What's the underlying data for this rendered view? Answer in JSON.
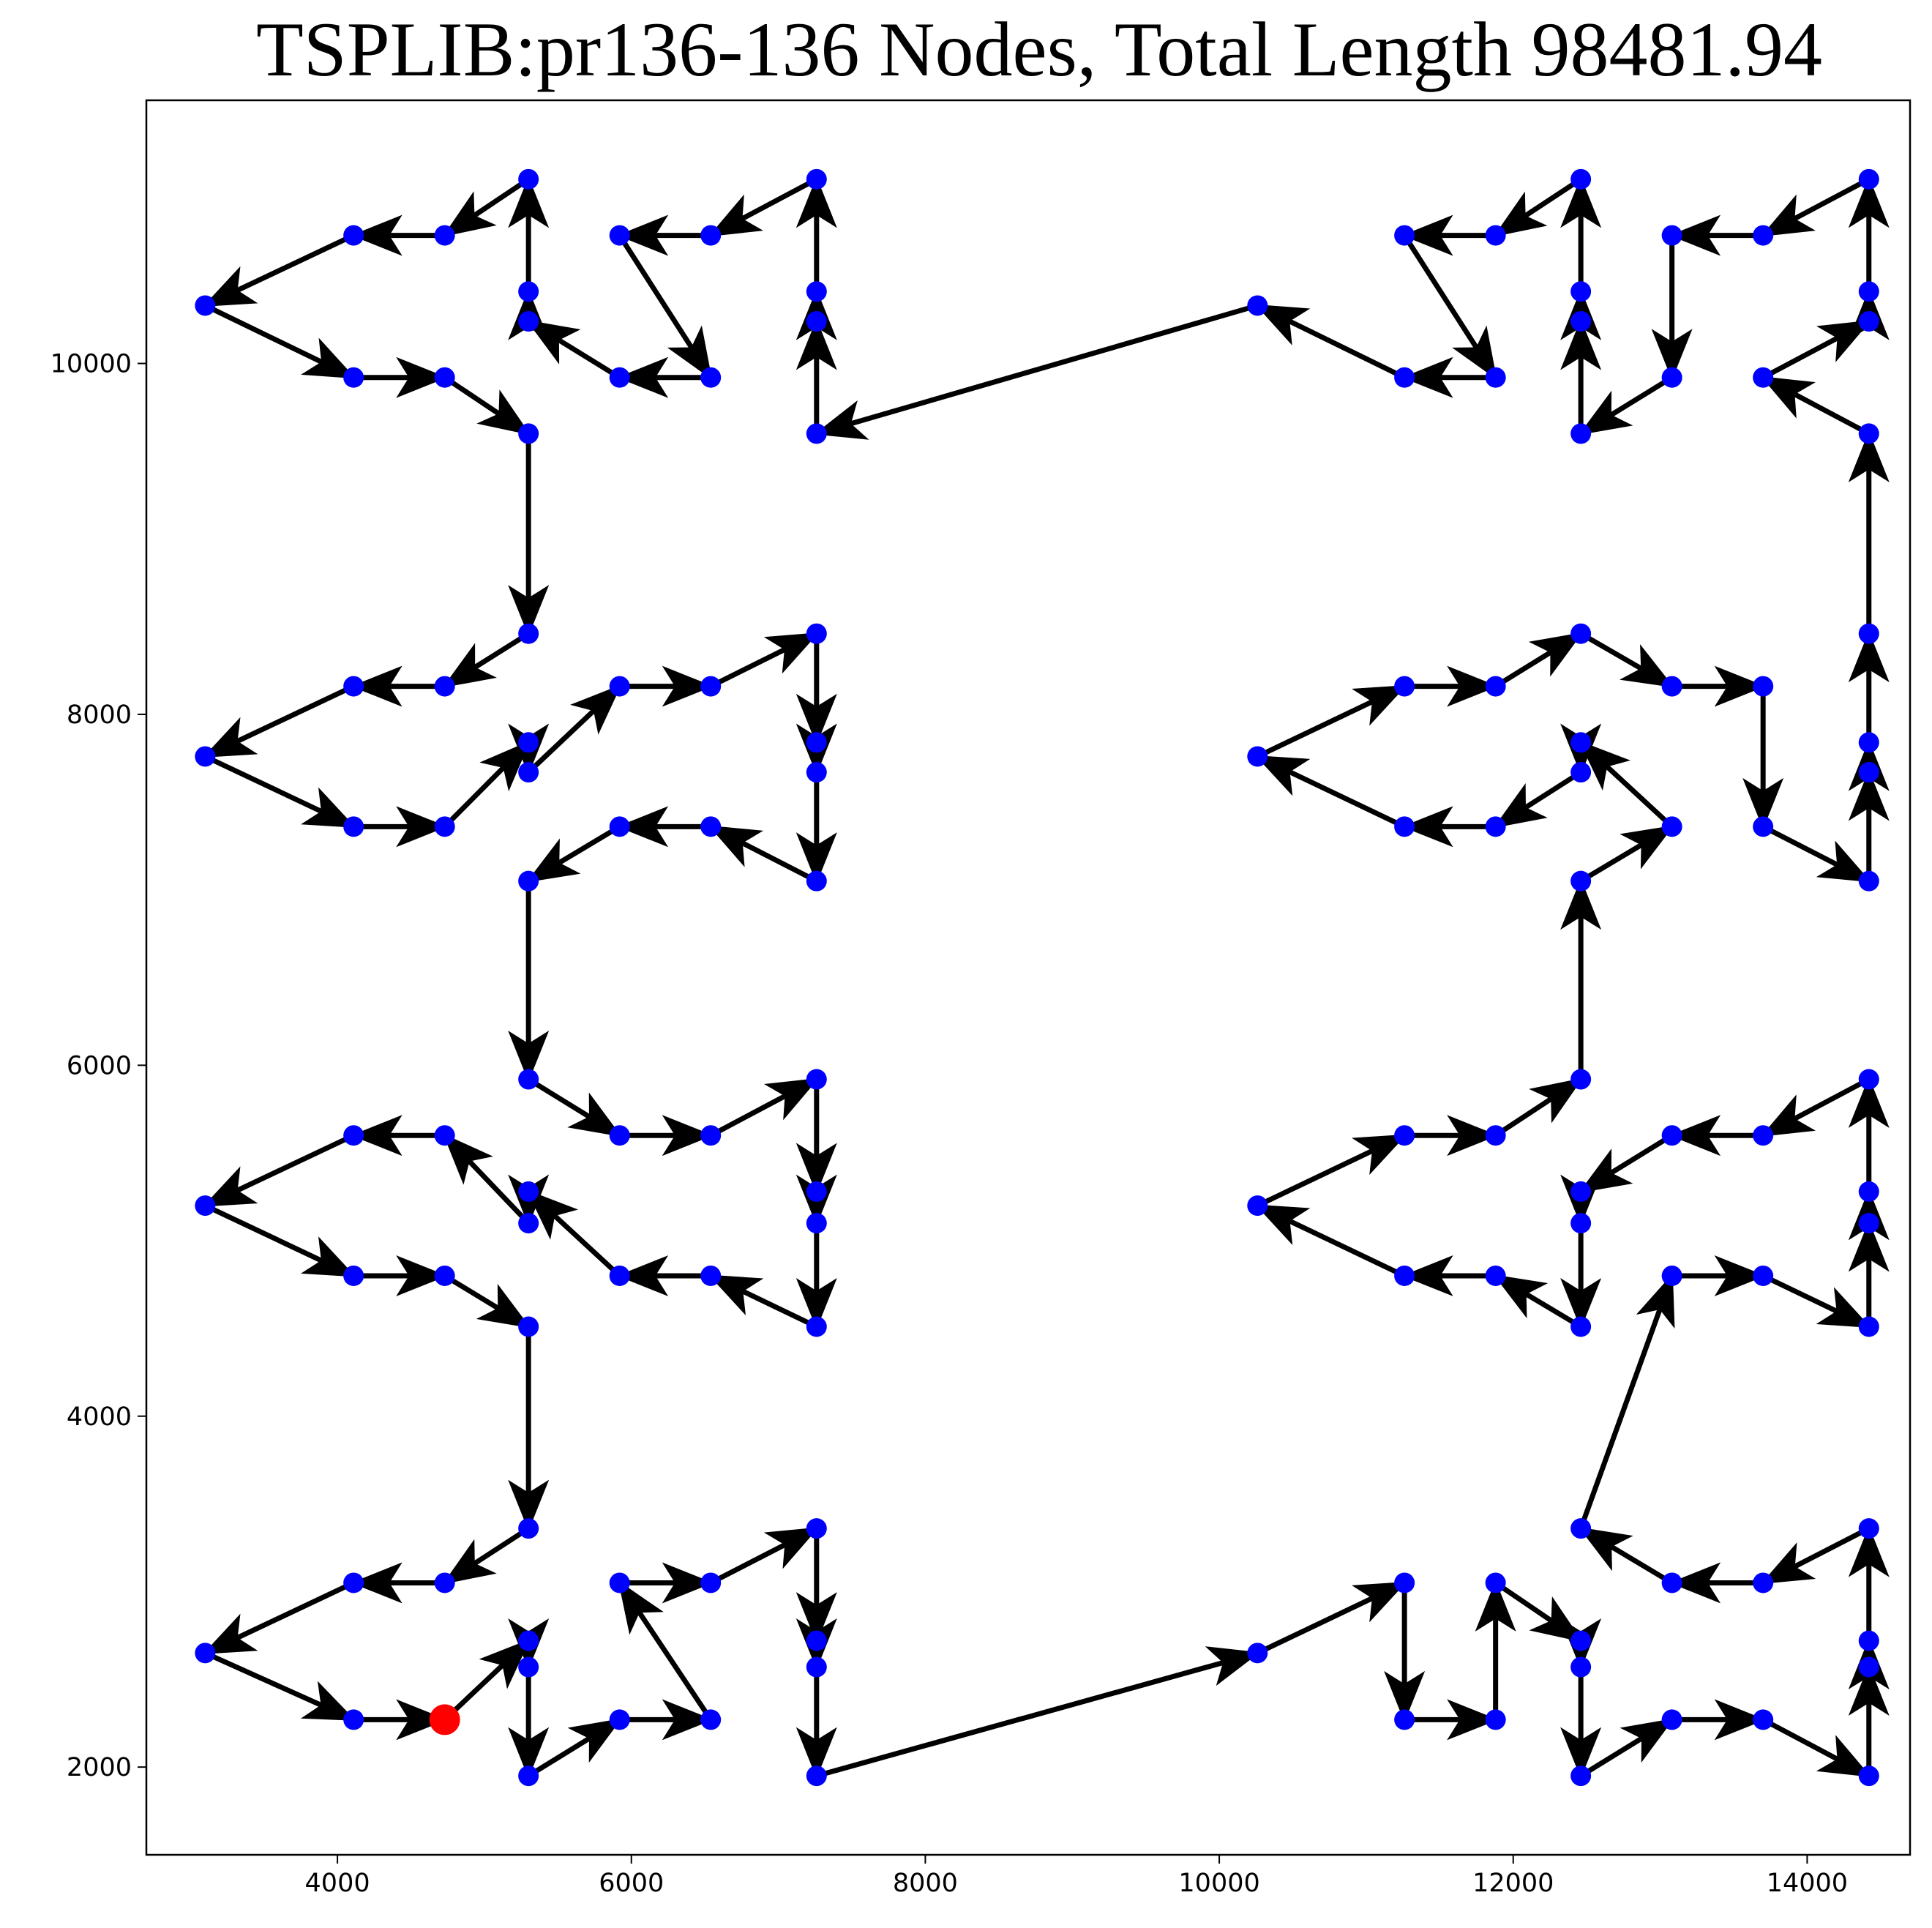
{
  "chart_data": {
    "type": "line",
    "title": "TSPLIB:pr136-136 Nodes, Total Length 98481.94",
    "xlabel": "",
    "ylabel": "",
    "xlim": [
      2700,
      14700
    ],
    "ylim": [
      1500,
      11500
    ],
    "x_ticks": [
      "4000",
      "6000",
      "8000",
      "10000",
      "12000",
      "14000"
    ],
    "y_ticks": [
      "2000",
      "4000",
      "6000",
      "8000",
      "10000"
    ],
    "grid": false,
    "colors": {
      "node": "#0000ff",
      "start": "#ff0000",
      "edge": "#000000"
    },
    "start": [
      4730,
      2270
    ],
    "tour": [
      [
        4730,
        2270
      ],
      [
        5300,
        2720
      ],
      [
        5300,
        2570
      ],
      [
        5300,
        1950
      ],
      [
        5920,
        2270
      ],
      [
        6540,
        2270
      ],
      [
        5920,
        3050
      ],
      [
        6540,
        3050
      ],
      [
        7260,
        3360
      ],
      [
        7260,
        2720
      ],
      [
        7260,
        2570
      ],
      [
        7260,
        1950
      ],
      [
        10260,
        2650
      ],
      [
        11260,
        3050
      ],
      [
        11260,
        2270
      ],
      [
        11880,
        2270
      ],
      [
        11880,
        3050
      ],
      [
        12460,
        2720
      ],
      [
        12460,
        2570
      ],
      [
        12460,
        1950
      ],
      [
        13080,
        2270
      ],
      [
        13700,
        2270
      ],
      [
        14420,
        1950
      ],
      [
        14420,
        2570
      ],
      [
        14420,
        2720
      ],
      [
        14420,
        3360
      ],
      [
        13700,
        3050
      ],
      [
        13080,
        3050
      ],
      [
        12460,
        3360
      ],
      [
        13080,
        4800
      ],
      [
        13700,
        4800
      ],
      [
        14420,
        4510
      ],
      [
        14420,
        5100
      ],
      [
        14420,
        5280
      ],
      [
        14420,
        5920
      ],
      [
        13700,
        5600
      ],
      [
        13080,
        5600
      ],
      [
        12460,
        5280
      ],
      [
        12460,
        5100
      ],
      [
        12460,
        4510
      ],
      [
        11880,
        4800
      ],
      [
        11260,
        4800
      ],
      [
        10260,
        5200
      ],
      [
        11260,
        5600
      ],
      [
        11880,
        5600
      ],
      [
        12460,
        5920
      ],
      [
        12460,
        7050
      ],
      [
        13080,
        7360
      ],
      [
        12460,
        7840
      ],
      [
        12460,
        7670
      ],
      [
        11880,
        7360
      ],
      [
        11260,
        7360
      ],
      [
        10260,
        7760
      ],
      [
        11260,
        8160
      ],
      [
        11880,
        8160
      ],
      [
        12460,
        8460
      ],
      [
        13080,
        8160
      ],
      [
        13700,
        8160
      ],
      [
        13700,
        7360
      ],
      [
        14420,
        7050
      ],
      [
        14420,
        7670
      ],
      [
        14420,
        7840
      ],
      [
        14420,
        8460
      ],
      [
        14420,
        9600
      ],
      [
        13700,
        9920
      ],
      [
        14420,
        10240
      ],
      [
        14420,
        10410
      ],
      [
        14420,
        11050
      ],
      [
        13700,
        10730
      ],
      [
        13080,
        10730
      ],
      [
        13080,
        9920
      ],
      [
        12460,
        9600
      ],
      [
        12460,
        10240
      ],
      [
        12460,
        10410
      ],
      [
        12460,
        11050
      ],
      [
        11880,
        10730
      ],
      [
        11260,
        10730
      ],
      [
        11880,
        9920
      ],
      [
        11260,
        9920
      ],
      [
        10260,
        10330
      ],
      [
        7260,
        9600
      ],
      [
        7260,
        10240
      ],
      [
        7260,
        10410
      ],
      [
        7260,
        11050
      ],
      [
        6540,
        10730
      ],
      [
        5920,
        10730
      ],
      [
        6540,
        9920
      ],
      [
        5920,
        9920
      ],
      [
        5300,
        10240
      ],
      [
        5300,
        10410
      ],
      [
        5300,
        11050
      ],
      [
        4730,
        10730
      ],
      [
        4110,
        10730
      ],
      [
        3100,
        10330
      ],
      [
        4110,
        9920
      ],
      [
        4730,
        9920
      ],
      [
        5300,
        9600
      ],
      [
        5300,
        8460
      ],
      [
        4730,
        8160
      ],
      [
        4110,
        8160
      ],
      [
        3100,
        7760
      ],
      [
        4110,
        7360
      ],
      [
        4730,
        7360
      ],
      [
        5300,
        7840
      ],
      [
        5300,
        7670
      ],
      [
        5920,
        8160
      ],
      [
        6540,
        8160
      ],
      [
        7260,
        8460
      ],
      [
        7260,
        7840
      ],
      [
        7260,
        7670
      ],
      [
        7260,
        7050
      ],
      [
        6540,
        7360
      ],
      [
        5920,
        7360
      ],
      [
        5300,
        7050
      ],
      [
        5300,
        5920
      ],
      [
        5920,
        5600
      ],
      [
        6540,
        5600
      ],
      [
        7260,
        5920
      ],
      [
        7260,
        5280
      ],
      [
        7260,
        5100
      ],
      [
        7260,
        4510
      ],
      [
        6540,
        4800
      ],
      [
        5920,
        4800
      ],
      [
        5300,
        5280
      ],
      [
        5300,
        5100
      ],
      [
        4730,
        5600
      ],
      [
        4110,
        5600
      ],
      [
        3100,
        5200
      ],
      [
        4110,
        4800
      ],
      [
        4730,
        4800
      ],
      [
        5300,
        4510
      ],
      [
        5300,
        3360
      ],
      [
        4730,
        3050
      ],
      [
        4110,
        3050
      ],
      [
        3100,
        2650
      ],
      [
        4110,
        2270
      ]
    ]
  }
}
